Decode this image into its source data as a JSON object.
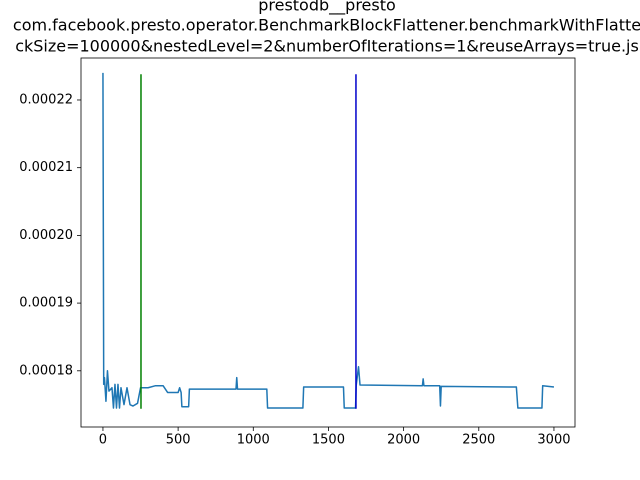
{
  "chart_data": {
    "type": "line",
    "title": [
      "prestodb__presto",
      "com.facebook.presto.operator.BenchmarkBlockFlattener.benchmarkWithFlatte",
      "ckSize=100000&nestedLevel=2&numberOfIterations=1&reuseArrays=true.js"
    ],
    "x": [
      0,
      5,
      10,
      20,
      30,
      40,
      60,
      70,
      80,
      90,
      100,
      110,
      120,
      140,
      160,
      180,
      200,
      230,
      250,
      300,
      350,
      400,
      430,
      500,
      510,
      520,
      525,
      570,
      575,
      885,
      890,
      895,
      1090,
      1095,
      1330,
      1335,
      1600,
      1605,
      1680,
      1685,
      1700,
      1710,
      2125,
      2130,
      2135,
      2240,
      2245,
      2250,
      2750,
      2760,
      2920,
      2925,
      3000
    ],
    "series": [
      {
        "color": "#1f77b4",
        "values": [
          0.000224,
          0.000178,
          0.000179,
          0.0001755,
          0.00018,
          0.000177,
          0.0001775,
          0.0001745,
          0.000178,
          0.0001745,
          0.000178,
          0.0001745,
          0.0001775,
          0.000175,
          0.0001775,
          0.000175,
          0.0001748,
          0.0001752,
          0.0001775,
          0.0001775,
          0.0001778,
          0.0001778,
          0.0001768,
          0.0001768,
          0.0001775,
          0.0001768,
          0.0001747,
          0.0001747,
          0.0001773,
          0.0001773,
          0.000179,
          0.0001773,
          0.0001773,
          0.0001745,
          0.0001745,
          0.0001776,
          0.0001776,
          0.0001745,
          0.0001745,
          0.0001779,
          0.0001806,
          0.0001779,
          0.0001778,
          0.0001788,
          0.0001778,
          0.0001778,
          0.0001748,
          0.0001777,
          0.0001776,
          0.0001745,
          0.0001745,
          0.0001778,
          0.0001776
        ]
      }
    ],
    "vlines": [
      {
        "x": 253,
        "ymin": 0.0001744,
        "ymax": 0.0002238,
        "color": "#008000"
      },
      {
        "x": 1683,
        "ymin": 0.0001744,
        "ymax": 0.0002238,
        "color": "#0000cc"
      }
    ],
    "xlim": [
      -146,
      3140
    ],
    "ylim": [
      0.0001717,
      0.0002262
    ],
    "xticks": [
      0,
      500,
      1000,
      1500,
      2000,
      2500,
      3000
    ],
    "yticks": [
      0.00018,
      0.00019,
      {
        "value": 0.0002,
        "label": "0.00020"
      },
      0.00021,
      0.00022
    ]
  }
}
